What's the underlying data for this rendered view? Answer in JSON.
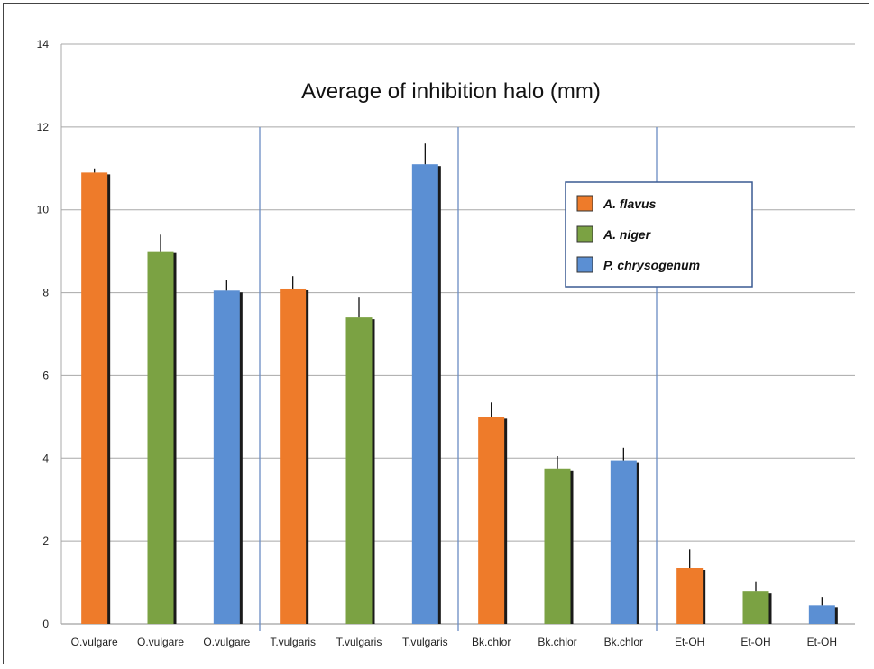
{
  "chart_data": {
    "type": "bar",
    "title": "Average of inhibition halo (mm)",
    "xlabel": "",
    "ylabel": "",
    "ylim": [
      0,
      14
    ],
    "yticks": [
      0,
      2,
      4,
      6,
      8,
      10,
      12,
      14
    ],
    "grid": true,
    "legend_position": "upper-right",
    "categories": [
      "O.vulgare",
      "O.vulgare",
      "O.vulgare",
      "T.vulgaris",
      "T.vulgaris",
      "T.vulgaris",
      "Bk.chlor",
      "Bk.chlor",
      "Bk.chlor",
      "Et-OH",
      "Et-OH",
      "Et-OH"
    ],
    "series": [
      {
        "name": "A. flavus",
        "color": "#EE7B2A"
      },
      {
        "name": "A. niger",
        "color": "#7BA243"
      },
      {
        "name": "P. chrysogenum",
        "color": "#5B8FD3"
      }
    ],
    "bars": [
      {
        "category": "O.vulgare",
        "series": "A. flavus",
        "value": 10.9,
        "error": 0.1
      },
      {
        "category": "O.vulgare",
        "series": "A. niger",
        "value": 9.0,
        "error": 0.4
      },
      {
        "category": "O.vulgare",
        "series": "P. chrysogenum",
        "value": 8.05,
        "error": 0.25
      },
      {
        "category": "T.vulgaris",
        "series": "A. flavus",
        "value": 8.1,
        "error": 0.3
      },
      {
        "category": "T.vulgaris",
        "series": "A. niger",
        "value": 7.4,
        "error": 0.5
      },
      {
        "category": "T.vulgaris",
        "series": "P. chrysogenum",
        "value": 11.1,
        "error": 0.5
      },
      {
        "category": "Bk.chlor",
        "series": "A. flavus",
        "value": 5.0,
        "error": 0.35
      },
      {
        "category": "Bk.chlor",
        "series": "A. niger",
        "value": 3.75,
        "error": 0.3
      },
      {
        "category": "Bk.chlor",
        "series": "P. chrysogenum",
        "value": 3.95,
        "error": 0.3
      },
      {
        "category": "Et-OH",
        "series": "A. flavus",
        "value": 1.35,
        "error": 0.45
      },
      {
        "category": "Et-OH",
        "series": "A. niger",
        "value": 0.78,
        "error": 0.25
      },
      {
        "category": "Et-OH",
        "series": "P. chrysogenum",
        "value": 0.45,
        "error": 0.2
      }
    ],
    "group_separators_after": [
      2,
      5,
      8
    ],
    "colors": {
      "grid": "#A8A8A8",
      "separator": "#6A8CC4",
      "axis": "#888888",
      "legend_border": "#3A5A92"
    }
  }
}
